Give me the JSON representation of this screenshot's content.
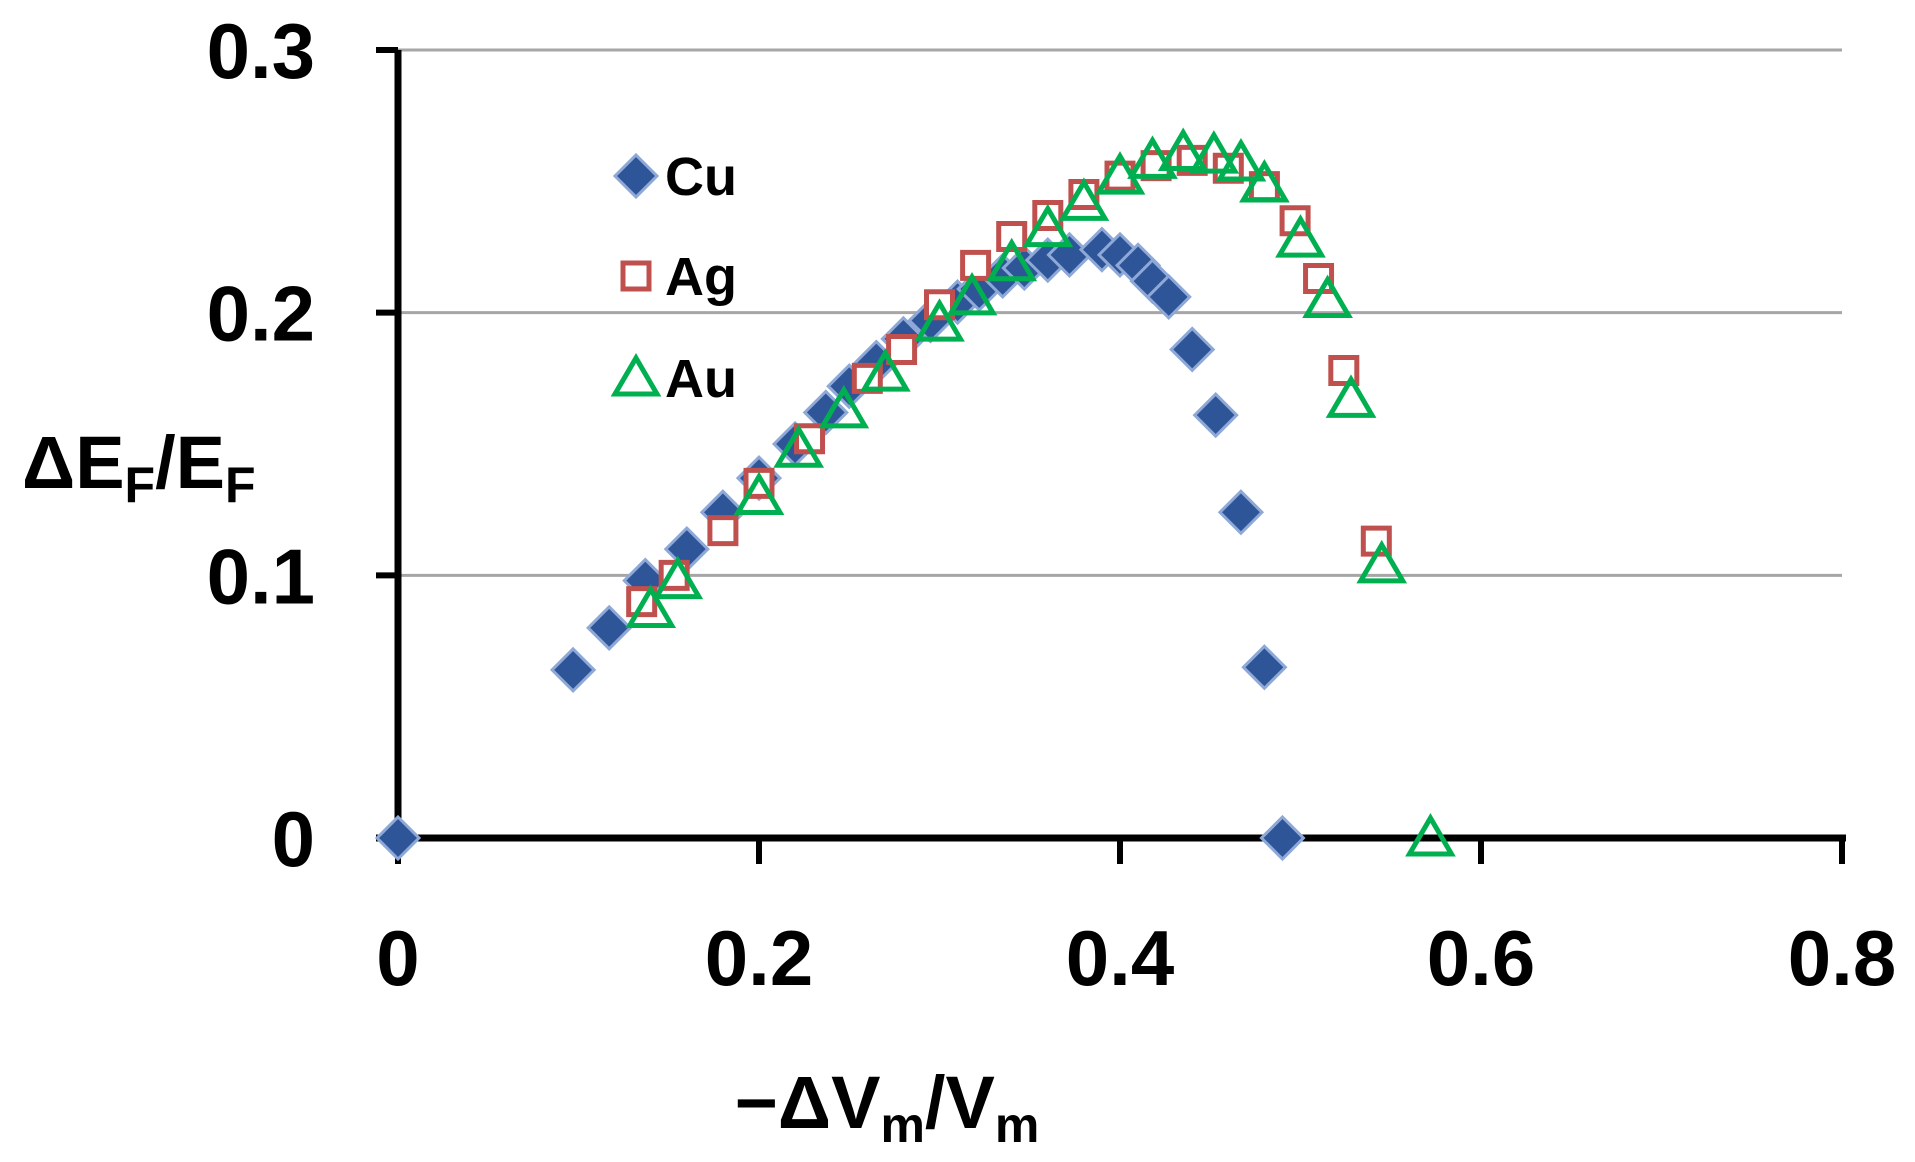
{
  "chart_data": {
    "type": "scatter",
    "title": "",
    "xlabel": {
      "prefix": "−ΔV",
      "sub1": "m",
      "mid": "/V",
      "sub2": "m"
    },
    "ylabel": {
      "prefix": "ΔE",
      "sub1": "F",
      "mid": "/E",
      "sub2": "F"
    },
    "xlim": [
      0,
      0.8
    ],
    "ylim": [
      0,
      0.3
    ],
    "xticks": [
      "0",
      "0.2",
      "0.4",
      "0.6",
      "0.8"
    ],
    "yticks": [
      "0",
      "0.1",
      "0.2",
      "0.3"
    ],
    "xtick_values": [
      0,
      0.2,
      0.4,
      0.6,
      0.8
    ],
    "ytick_values": [
      0,
      0.1,
      0.2,
      0.3
    ],
    "grid": "horizontal",
    "legend_position": "top-left",
    "series": [
      {
        "name": "Cu",
        "marker": "diamond",
        "color": "#2E5597",
        "x": [
          0,
          0.097,
          0.117,
          0.137,
          0.16,
          0.18,
          0.2,
          0.22,
          0.237,
          0.25,
          0.265,
          0.28,
          0.295,
          0.31,
          0.322,
          0.335,
          0.347,
          0.36,
          0.372,
          0.39,
          0.4,
          0.41,
          0.418,
          0.427,
          0.44,
          0.453,
          0.467,
          0.48,
          0.49
        ],
        "y": [
          0,
          0.064,
          0.08,
          0.098,
          0.11,
          0.124,
          0.137,
          0.15,
          0.162,
          0.172,
          0.181,
          0.19,
          0.197,
          0.204,
          0.209,
          0.214,
          0.217,
          0.22,
          0.222,
          0.224,
          0.222,
          0.218,
          0.212,
          0.206,
          0.186,
          0.161,
          0.124,
          0.065,
          0
        ]
      },
      {
        "name": "Ag",
        "marker": "square",
        "color": "#C0504D",
        "x": [
          0.135,
          0.153,
          0.18,
          0.2,
          0.228,
          0.26,
          0.279,
          0.3,
          0.32,
          0.34,
          0.36,
          0.38,
          0.4,
          0.42,
          0.44,
          0.46,
          0.48,
          0.497,
          0.51,
          0.524,
          0.542
        ],
        "y": [
          0.09,
          0.1,
          0.117,
          0.135,
          0.152,
          0.175,
          0.186,
          0.203,
          0.218,
          0.229,
          0.237,
          0.245,
          0.252,
          0.256,
          0.258,
          0.255,
          0.248,
          0.235,
          0.213,
          0.178,
          0.113
        ]
      },
      {
        "name": "Au",
        "marker": "triangle",
        "color": "#00B050",
        "x": [
          0.14,
          0.155,
          0.2,
          0.222,
          0.247,
          0.27,
          0.3,
          0.318,
          0.34,
          0.36,
          0.38,
          0.4,
          0.418,
          0.435,
          0.452,
          0.467,
          0.48,
          0.5,
          0.515,
          0.528,
          0.545,
          0.572
        ],
        "y": [
          0.087,
          0.098,
          0.13,
          0.148,
          0.163,
          0.177,
          0.196,
          0.206,
          0.219,
          0.232,
          0.242,
          0.252,
          0.258,
          0.261,
          0.26,
          0.257,
          0.249,
          0.228,
          0.205,
          0.167,
          0.104,
          0
        ]
      }
    ]
  }
}
